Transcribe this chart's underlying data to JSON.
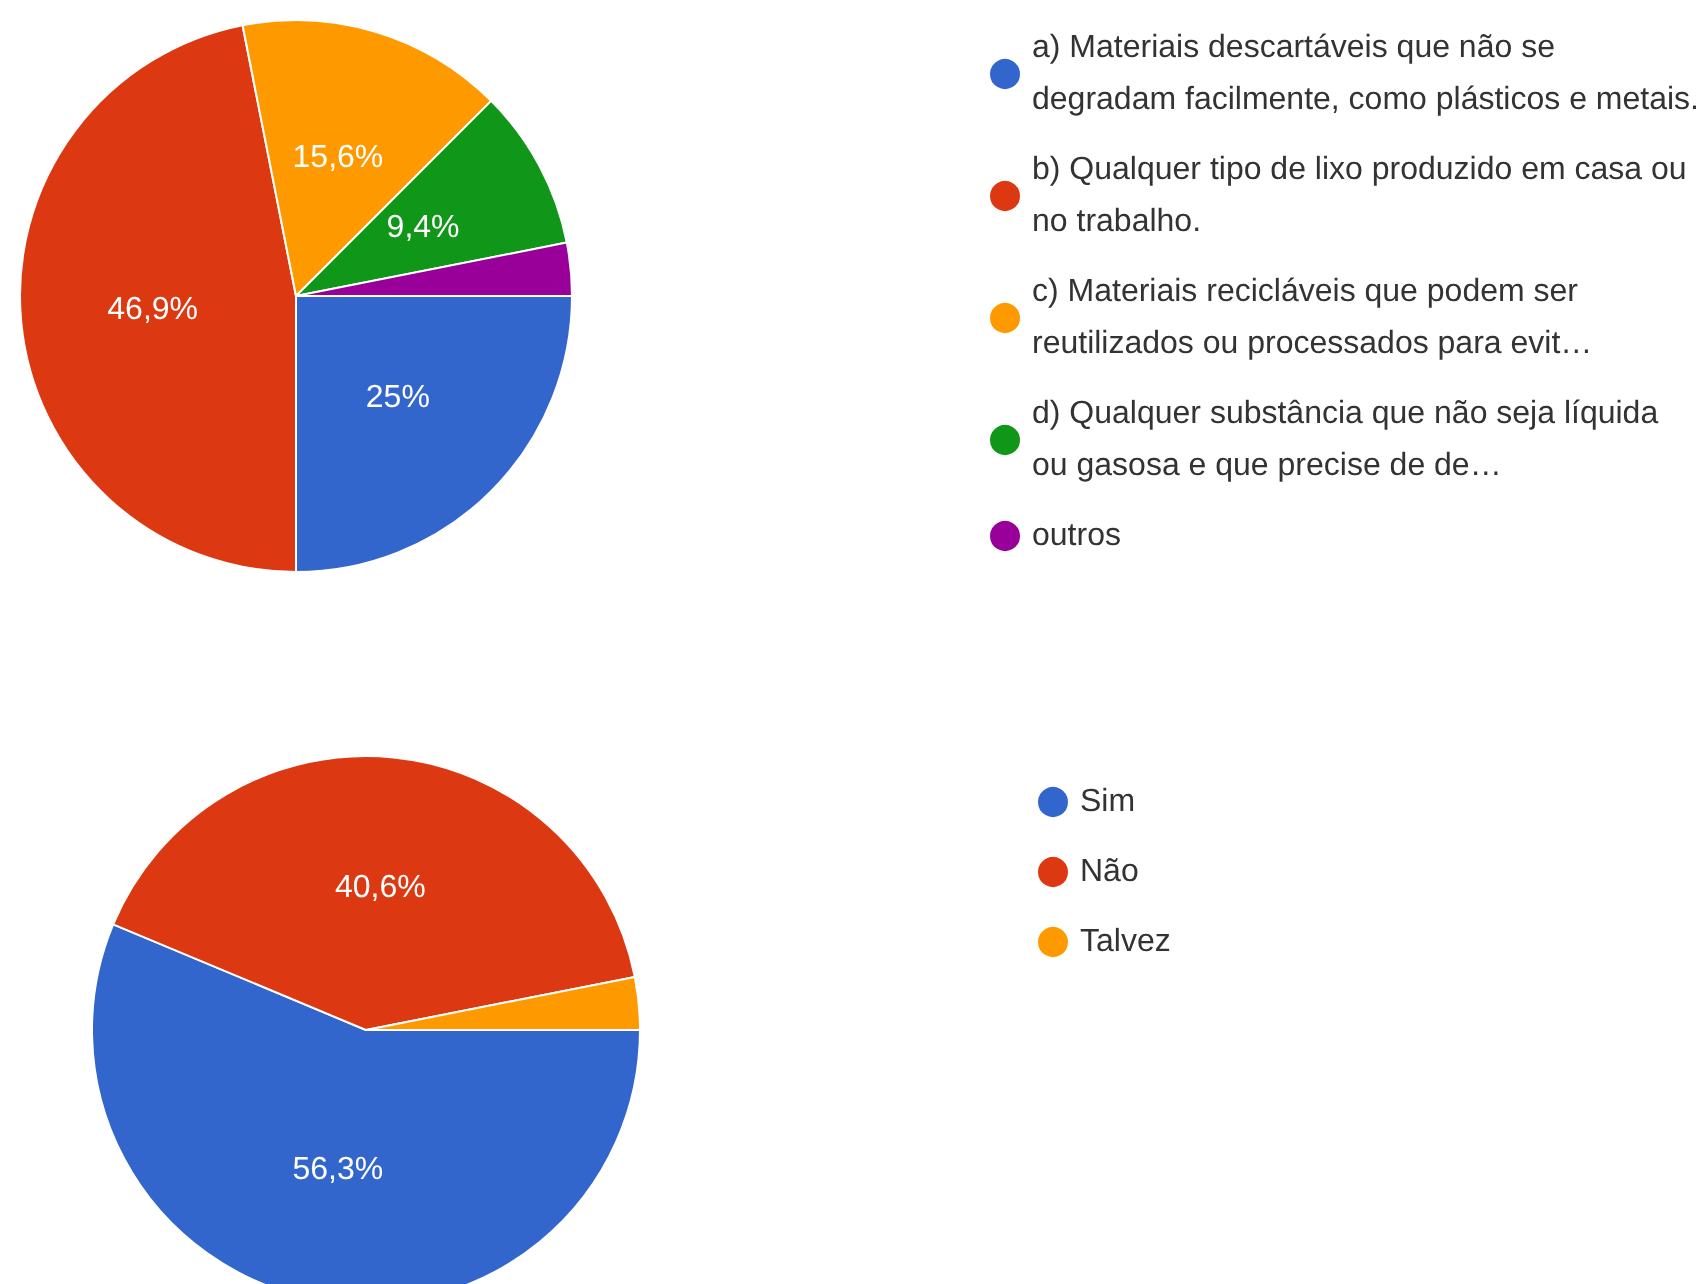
{
  "chart_data": [
    {
      "type": "pie",
      "categories": [
        "a) Materiais descartáveis que não se degradam facilmente, como plásticos e metais.",
        "b) Qualquer tipo de lixo produzido em casa ou no trabalho.",
        "c) Materiais recicláveis que podem ser reutilizados ou processados para evit…",
        "d) Qualquer substância que não seja líquida ou gasosa e que precise de de…",
        "outros"
      ],
      "values": [
        25,
        46.9,
        15.6,
        9.4,
        3.1
      ],
      "value_labels": [
        "25%",
        "46,9%",
        "15,6%",
        "9,4%",
        null
      ],
      "colors": [
        "#3366cc",
        "#dc3912",
        "#ff9900",
        "#109618",
        "#990099"
      ],
      "legend": "right"
    },
    {
      "type": "pie",
      "categories": [
        "Sim",
        "Não",
        "Talvez"
      ],
      "values": [
        56.3,
        40.6,
        3.1
      ],
      "value_labels": [
        "56,3%",
        "40,6%",
        null
      ],
      "colors": [
        "#3366cc",
        "#dc3912",
        "#ff9900"
      ],
      "legend": "right"
    }
  ]
}
